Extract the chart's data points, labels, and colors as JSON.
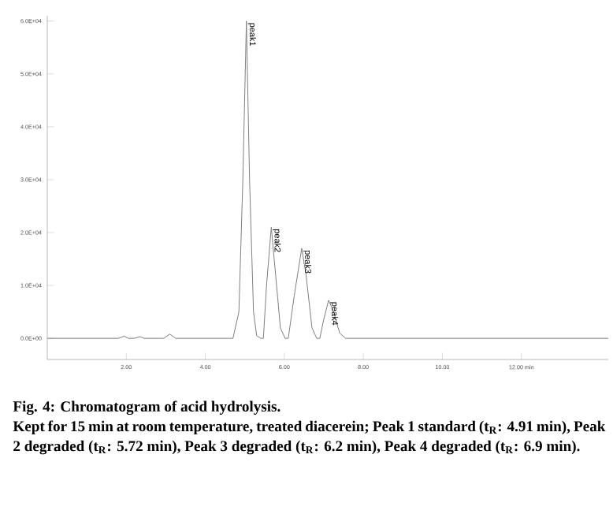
{
  "chart_data": {
    "type": "line",
    "title": "Fig. 4: Chromatogram of acid hydrolysis.",
    "x": [
      0,
      1.8,
      1.95,
      2.05,
      2.2,
      2.35,
      2.45,
      2.6,
      2.95,
      3.1,
      3.25,
      4.6,
      4.7,
      4.85,
      4.95,
      5.04,
      5.12,
      5.22,
      5.3,
      5.4,
      5.47,
      5.55,
      5.67,
      5.78,
      5.9,
      6.02,
      6.1,
      6.25,
      6.44,
      6.55,
      6.7,
      6.82,
      6.9,
      6.98,
      7.12,
      7.25,
      7.4,
      7.55,
      14.2
    ],
    "series": [
      {
        "color": "#808080",
        "values": [
          0,
          0,
          400,
          0,
          0,
          300,
          0,
          0,
          0,
          800,
          0,
          0,
          0,
          5000,
          30000,
          60000,
          30000,
          5000,
          500,
          0,
          0,
          10000,
          21000,
          12000,
          2000,
          0,
          0,
          8000,
          17000,
          12000,
          2000,
          0,
          0,
          3000,
          7200,
          5000,
          1000,
          0,
          0
        ]
      }
    ],
    "xlim": [
      0,
      14.2
    ],
    "xticks": [
      {
        "value": 2,
        "label": "2.00"
      },
      {
        "value": 4,
        "label": "4.00"
      },
      {
        "value": 6,
        "label": "6.00"
      },
      {
        "value": 8,
        "label": "8.00"
      },
      {
        "value": 10,
        "label": "10.00"
      },
      {
        "value": 12,
        "label": "12.00 min"
      }
    ],
    "ylim": [
      -4000,
      61000
    ],
    "yticks": [
      {
        "value": 0,
        "label": "0.0E+00"
      },
      {
        "value": 10000,
        "label": "1.0E+04"
      },
      {
        "value": 20000,
        "label": "2.0E+04"
      },
      {
        "value": 30000,
        "label": "3.0E+04"
      },
      {
        "value": 40000,
        "label": "4.0E+04"
      },
      {
        "value": 50000,
        "label": "5.0E+04"
      },
      {
        "value": 60000,
        "label": "6.0E+04"
      }
    ],
    "grid": false,
    "annotations": [
      {
        "text": "peak1",
        "x": 5.04,
        "y": 60000
      },
      {
        "text": "peak2",
        "x": 5.67,
        "y": 21000
      },
      {
        "text": "peak3",
        "x": 6.44,
        "y": 17000
      },
      {
        "text": "peak4",
        "x": 7.12,
        "y": 7200
      },
      "Kept for 15 min at room temperature, treated diacerein; Peak 1 standard (t$_{R}$: 4.91 min), Peak 2 degraded (t$_{R}$: 5.72 min), Peak 3 degraded (t$_{R}$: 6.2 min), Peak 4 degraded (t$_{R}$: 6.9 min)."
    ]
  }
}
